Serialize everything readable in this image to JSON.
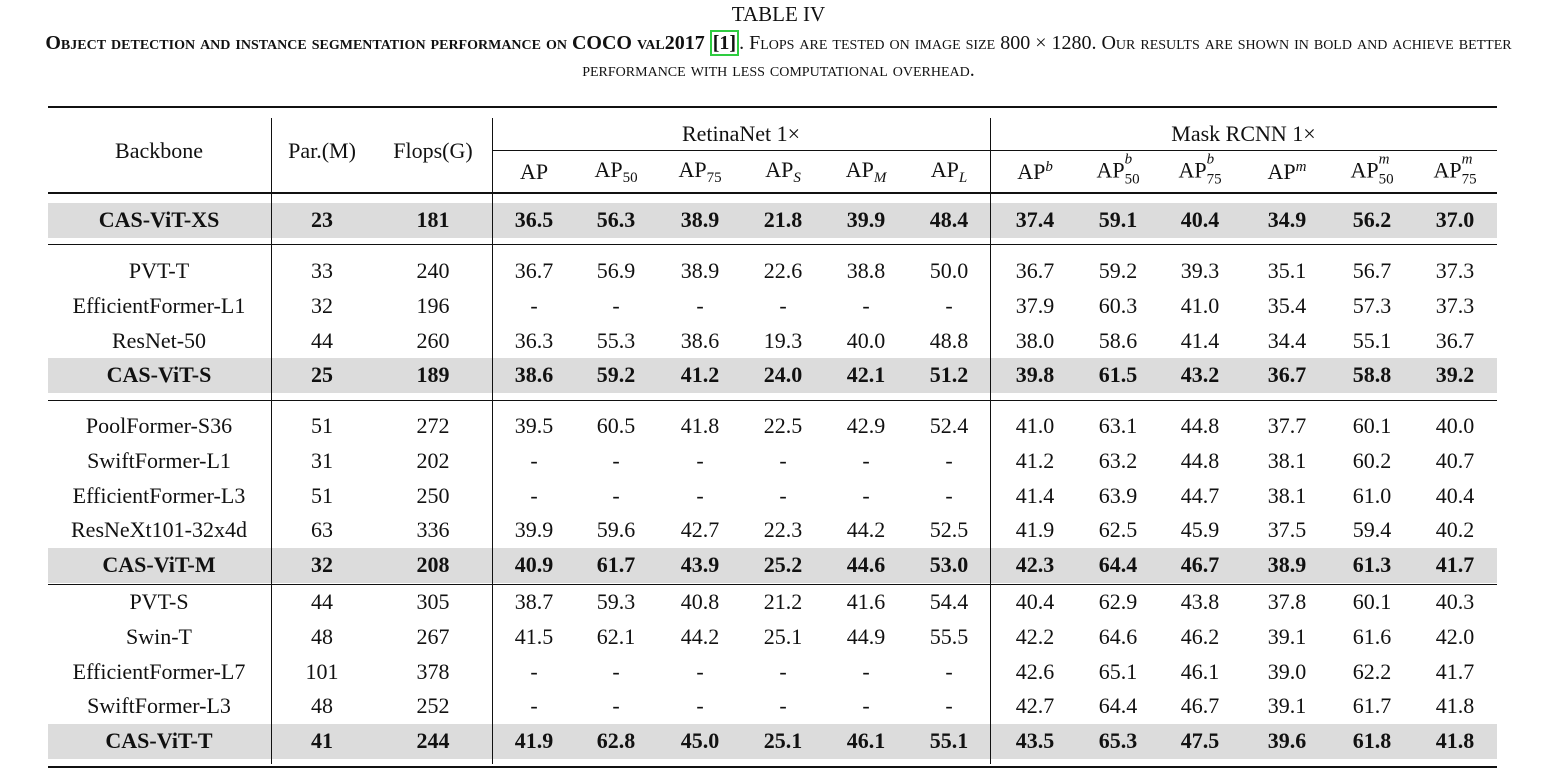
{
  "header": {
    "label": "TABLE IV",
    "caption": {
      "bold": "Object detection and instance segmentation performance on COCO val2017",
      "citation": "[1]",
      "text": ". Flops are tested on image size 800 × 1280. Our results are shown in bold and achieve better performance with less computational overhead."
    }
  },
  "table": {
    "columns": [
      "Backbone",
      "Par.(M)",
      "Flops(G)"
    ],
    "column_groups": [
      "RetinaNet 1×",
      "Mask RCNN 1×"
    ],
    "subcolumns": [
      {
        "main": "AP"
      },
      {
        "main": "AP",
        "sub": "50"
      },
      {
        "main": "AP",
        "sub": "75"
      },
      {
        "main": "AP",
        "sub": "S"
      },
      {
        "main": "AP",
        "sub": "M"
      },
      {
        "main": "AP",
        "sub": "L"
      },
      {
        "main": "AP",
        "sup": "b"
      },
      {
        "main": "AP",
        "sup": "b",
        "sub": "50"
      },
      {
        "main": "AP",
        "sup": "b",
        "sub": "75"
      },
      {
        "main": "AP",
        "sup": "m"
      },
      {
        "main": "AP",
        "sup": "m",
        "sub": "50"
      },
      {
        "main": "AP",
        "sup": "m",
        "sub": "75"
      }
    ],
    "groups": [
      {
        "rows": [
          {
            "highlight": true,
            "cells": [
              "CAS-ViT-XS",
              "23",
              "181",
              "36.5",
              "56.3",
              "38.9",
              "21.8",
              "39.9",
              "48.4",
              "37.4",
              "59.1",
              "40.4",
              "34.9",
              "56.2",
              "37.0"
            ]
          }
        ]
      },
      {
        "rows": [
          {
            "cells": [
              "PVT-T",
              "33",
              "240",
              "36.7",
              "56.9",
              "38.9",
              "22.6",
              "38.8",
              "50.0",
              "36.7",
              "59.2",
              "39.3",
              "35.1",
              "56.7",
              "37.3"
            ]
          },
          {
            "cells": [
              "EfficientFormer-L1",
              "32",
              "196",
              "-",
              "-",
              "-",
              "-",
              "-",
              "-",
              "37.9",
              "60.3",
              "41.0",
              "35.4",
              "57.3",
              "37.3"
            ]
          },
          {
            "cells": [
              "ResNet-50",
              "44",
              "260",
              "36.3",
              "55.3",
              "38.6",
              "19.3",
              "40.0",
              "48.8",
              "38.0",
              "58.6",
              "41.4",
              "34.4",
              "55.1",
              "36.7"
            ]
          },
          {
            "highlight": true,
            "cells": [
              "CAS-ViT-S",
              "25",
              "189",
              "38.6",
              "59.2",
              "41.2",
              "24.0",
              "42.1",
              "51.2",
              "39.8",
              "61.5",
              "43.2",
              "36.7",
              "58.8",
              "39.2"
            ]
          }
        ]
      },
      {
        "rows": [
          {
            "cells": [
              "PoolFormer-S36",
              "51",
              "272",
              "39.5",
              "60.5",
              "41.8",
              "22.5",
              "42.9",
              "52.4",
              "41.0",
              "63.1",
              "44.8",
              "37.7",
              "60.1",
              "40.0"
            ]
          },
          {
            "cells": [
              "SwiftFormer-L1",
              "31",
              "202",
              "-",
              "-",
              "-",
              "-",
              "-",
              "-",
              "41.2",
              "63.2",
              "44.8",
              "38.1",
              "60.2",
              "40.7"
            ]
          },
          {
            "cells": [
              "EfficientFormer-L3",
              "51",
              "250",
              "-",
              "-",
              "-",
              "-",
              "-",
              "-",
              "41.4",
              "63.9",
              "44.7",
              "38.1",
              "61.0",
              "40.4"
            ]
          },
          {
            "cells": [
              "ResNeXt101-32x4d",
              "63",
              "336",
              "39.9",
              "59.6",
              "42.7",
              "22.3",
              "44.2",
              "52.5",
              "41.9",
              "62.5",
              "45.9",
              "37.5",
              "59.4",
              "40.2"
            ]
          },
          {
            "highlight": true,
            "cells": [
              "CAS-ViT-M",
              "32",
              "208",
              "40.9",
              "61.7",
              "43.9",
              "25.2",
              "44.6",
              "53.0",
              "42.3",
              "64.4",
              "46.7",
              "38.9",
              "61.3",
              "41.7"
            ]
          }
        ]
      },
      {
        "rows": [
          {
            "cells": [
              "PVT-S",
              "44",
              "305",
              "38.7",
              "59.3",
              "40.8",
              "21.2",
              "41.6",
              "54.4",
              "40.4",
              "62.9",
              "43.8",
              "37.8",
              "60.1",
              "40.3"
            ]
          },
          {
            "cells": [
              "Swin-T",
              "48",
              "267",
              "41.5",
              "62.1",
              "44.2",
              "25.1",
              "44.9",
              "55.5",
              "42.2",
              "64.6",
              "46.2",
              "39.1",
              "61.6",
              "42.0"
            ]
          },
          {
            "cells": [
              "EfficientFormer-L7",
              "101",
              "378",
              "-",
              "-",
              "-",
              "-",
              "-",
              "-",
              "42.6",
              "65.1",
              "46.1",
              "39.0",
              "62.2",
              "41.7"
            ]
          },
          {
            "cells": [
              "SwiftFormer-L3",
              "48",
              "252",
              "-",
              "-",
              "-",
              "-",
              "-",
              "-",
              "42.7",
              "64.4",
              "46.7",
              "39.1",
              "61.7",
              "41.8"
            ]
          },
          {
            "highlight": true,
            "cells": [
              "CAS-ViT-T",
              "41",
              "244",
              "41.9",
              "62.8",
              "45.0",
              "25.1",
              "46.1",
              "55.1",
              "43.5",
              "65.3",
              "47.5",
              "39.6",
              "61.8",
              "41.8"
            ]
          }
        ]
      }
    ]
  }
}
